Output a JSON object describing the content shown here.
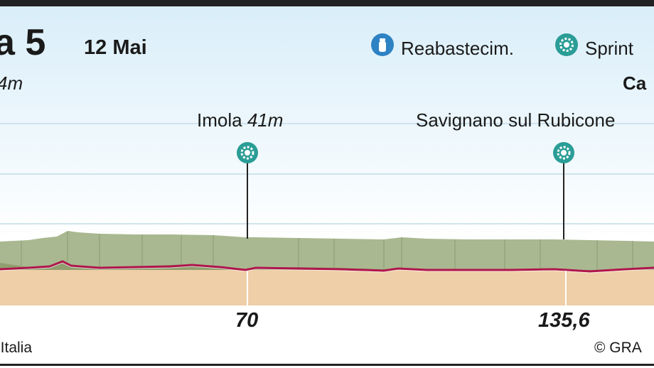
{
  "header": {
    "stage_title": "a 5",
    "date": "12 Mai",
    "start_altitude": "4m",
    "finish_name": "Ca"
  },
  "legend": {
    "supply_icon": "water-bottle-icon",
    "supply_label": "Reabastecim.",
    "sprint_icon": "sprint-gear-icon",
    "sprint_label": "Sprint"
  },
  "waypoints": [
    {
      "name": "Imola",
      "altitude": "41m",
      "km": "70",
      "icon": "sprint-gear-icon"
    },
    {
      "name": "Savignano sul Rubicone",
      "altitude": "",
      "km": "135,6",
      "icon": "sprint-gear-icon"
    }
  ],
  "footer": {
    "source": "’Italia",
    "credit": "© GRA"
  },
  "colors": {
    "sky_top": "#d9eef9",
    "profile_top": "#a9b890",
    "profile_front": "#919e6f",
    "ground": "#efcfa8",
    "route_line": "#b0154d",
    "gridline": "#cfe3ee",
    "icon_teal": "#2a9d96",
    "icon_blue": "#2d82c4"
  }
}
